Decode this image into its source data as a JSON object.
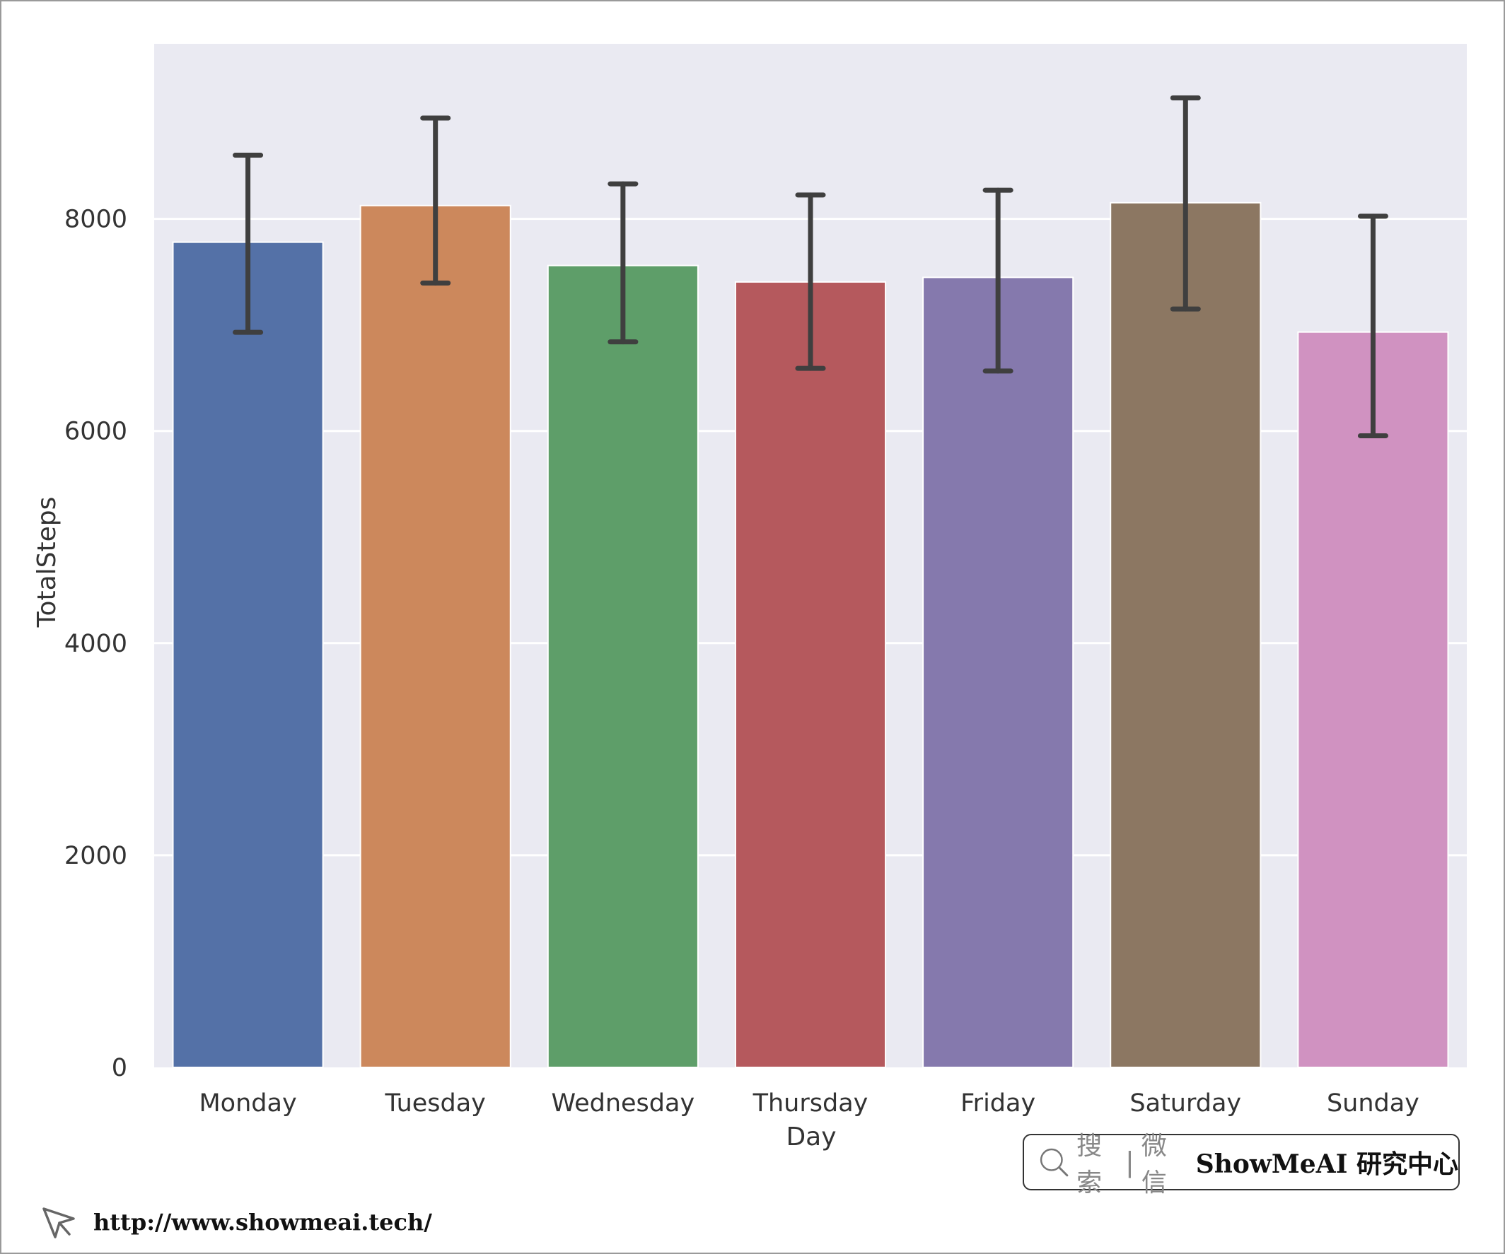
{
  "chart_data": {
    "type": "bar",
    "title": "",
    "xlabel": "Day",
    "ylabel": "TotalSteps",
    "categories": [
      "Monday",
      "Tuesday",
      "Wednesday",
      "Thursday",
      "Friday",
      "Saturday",
      "Sunday"
    ],
    "values": [
      7780,
      8125,
      7560,
      7405,
      7448,
      8152,
      6933
    ],
    "error_low": [
      6930,
      7395,
      6840,
      6590,
      6565,
      7150,
      5955
    ],
    "error_high": [
      8600,
      8950,
      8330,
      8225,
      8270,
      9140,
      8025
    ],
    "colors": [
      "#5471a7",
      "#cc885c",
      "#5e9e69",
      "#b5595d",
      "#8579ad",
      "#8c7762",
      "#d092c1"
    ],
    "ylim": [
      0,
      9650
    ],
    "yticks": [
      0,
      2000,
      4000,
      6000,
      8000
    ],
    "grid": true,
    "background": "#eaeaf2",
    "error_bar_color": "#3f3f3f"
  },
  "watermark": {
    "search_label": "搜索",
    "separator": "|",
    "wechat_label": "微信",
    "brand": "ShowMeAI 研究中心",
    "url": "http://www.showmeai.tech/"
  }
}
